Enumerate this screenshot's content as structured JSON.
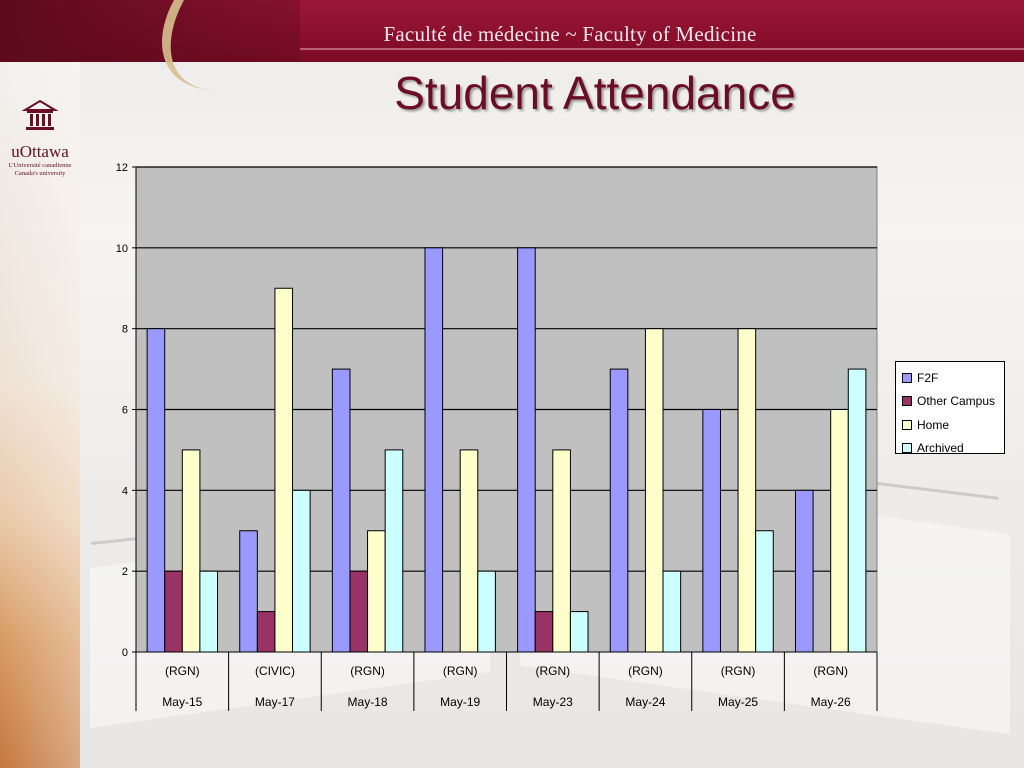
{
  "header": {
    "banner_title": "Faculté de médecine ~ Faculty of Medicine",
    "slide_title": "Student Attendance"
  },
  "logo": {
    "icon": "university-building-icon",
    "wordmark": "uOttawa",
    "sub1": "L'Université canadienne",
    "sub2": "Canada's university"
  },
  "colors": {
    "banner": "#8a0f2c",
    "title": "#6b0d24",
    "plot_bg": "#c0c0c0"
  },
  "chart_data": {
    "type": "bar",
    "categories": [
      "May-15",
      "May-17",
      "May-18",
      "May-19",
      "May-23",
      "May-24",
      "May-25",
      "May-26"
    ],
    "category_sublabels": [
      "(RGN)",
      "(CIVIC)",
      "(RGN)",
      "(RGN)",
      "(RGN)",
      "(RGN)",
      "(RGN)",
      "(RGN)"
    ],
    "series": [
      {
        "name": "F2F",
        "color": "#9999ff",
        "values": [
          8,
          3,
          7,
          10,
          10,
          7,
          6,
          4
        ]
      },
      {
        "name": "Other Campus",
        "color": "#993366",
        "values": [
          2,
          1,
          2,
          0,
          1,
          0,
          0,
          0
        ]
      },
      {
        "name": "Home",
        "color": "#ffffcc",
        "values": [
          5,
          9,
          3,
          5,
          5,
          8,
          8,
          6
        ]
      },
      {
        "name": "Archived",
        "color": "#ccffff",
        "values": [
          2,
          4,
          5,
          2,
          1,
          2,
          3,
          7
        ]
      }
    ],
    "ylim": [
      0,
      12
    ],
    "yticks": [
      0,
      2,
      4,
      6,
      8,
      10,
      12
    ],
    "grid": true,
    "legend_position": "right"
  }
}
